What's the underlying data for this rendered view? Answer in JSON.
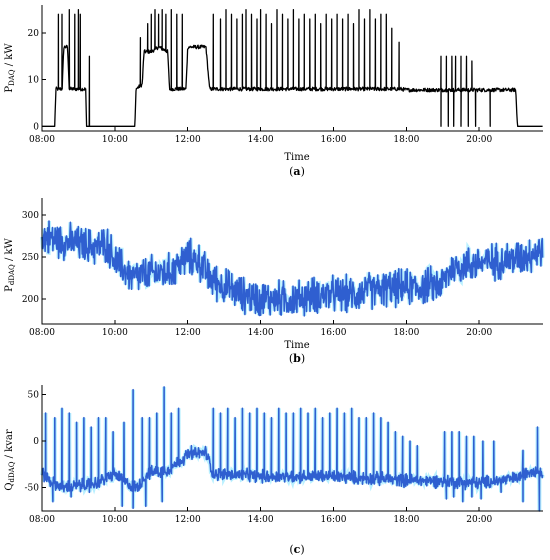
{
  "chart_data": [
    {
      "type": "line",
      "panel_label": "(a)",
      "panel_letter": "a",
      "xlabel": "Time",
      "ylabel_main": "P",
      "ylabel_sub": "DAQ",
      "ylabel_unit": " / kW",
      "xlim": [
        8.0,
        21.75
      ],
      "ylim": [
        -1,
        26
      ],
      "x_ticks": [
        "08:00",
        "10:00",
        "12:00",
        "14:00",
        "16:00",
        "18:00",
        "20:00"
      ],
      "x_tick_values": [
        8,
        10,
        12,
        14,
        16,
        18,
        20
      ],
      "y_ticks": [
        0,
        10,
        20
      ],
      "line_color": "#000000",
      "base": [
        [
          8.0,
          0
        ],
        [
          8.35,
          0
        ],
        [
          8.38,
          8
        ],
        [
          8.55,
          8
        ],
        [
          8.6,
          17
        ],
        [
          8.7,
          17
        ],
        [
          8.75,
          8
        ],
        [
          9.2,
          8
        ],
        [
          9.22,
          0
        ],
        [
          10.55,
          0
        ],
        [
          10.58,
          8
        ],
        [
          10.75,
          9
        ],
        [
          10.8,
          16
        ],
        [
          11.0,
          16
        ],
        [
          11.2,
          17
        ],
        [
          11.45,
          16
        ],
        [
          11.5,
          8
        ],
        [
          11.95,
          8
        ],
        [
          12.0,
          17
        ],
        [
          12.5,
          17
        ],
        [
          12.6,
          8
        ],
        [
          14.0,
          8
        ],
        [
          16.0,
          8
        ],
        [
          17.85,
          8
        ],
        [
          18.0,
          7.8
        ],
        [
          19.0,
          7.8
        ],
        [
          20.0,
          7.8
        ],
        [
          21.0,
          7.8
        ],
        [
          21.05,
          0
        ],
        [
          21.75,
          0
        ]
      ],
      "spikes": [
        [
          8.45,
          24
        ],
        [
          8.55,
          24
        ],
        [
          8.75,
          25
        ],
        [
          8.9,
          24
        ],
        [
          9.0,
          25
        ],
        [
          9.05,
          24
        ],
        [
          9.3,
          15
        ],
        [
          10.7,
          19
        ],
        [
          10.9,
          22
        ],
        [
          11.0,
          24
        ],
        [
          11.1,
          25
        ],
        [
          11.2,
          24
        ],
        [
          11.3,
          25
        ],
        [
          11.4,
          24
        ],
        [
          11.55,
          25
        ],
        [
          11.7,
          24
        ],
        [
          11.85,
          24
        ],
        [
          12.7,
          24
        ],
        [
          12.9,
          23
        ],
        [
          13.05,
          25
        ],
        [
          13.2,
          24
        ],
        [
          13.35,
          23
        ],
        [
          13.5,
          24
        ],
        [
          13.6,
          25
        ],
        [
          13.75,
          24
        ],
        [
          13.9,
          23
        ],
        [
          14.0,
          25
        ],
        [
          14.15,
          24
        ],
        [
          14.3,
          22
        ],
        [
          14.45,
          25
        ],
        [
          14.6,
          24
        ],
        [
          14.75,
          23
        ],
        [
          14.9,
          25
        ],
        [
          15.05,
          23
        ],
        [
          15.2,
          24
        ],
        [
          15.35,
          23
        ],
        [
          15.5,
          24
        ],
        [
          15.65,
          22
        ],
        [
          15.8,
          24
        ],
        [
          15.95,
          23
        ],
        [
          16.1,
          24
        ],
        [
          16.25,
          23
        ],
        [
          16.4,
          24
        ],
        [
          16.55,
          22
        ],
        [
          16.7,
          25
        ],
        [
          16.85,
          23
        ],
        [
          17.0,
          25
        ],
        [
          17.15,
          23
        ],
        [
          17.3,
          24
        ],
        [
          17.45,
          24
        ],
        [
          17.6,
          21
        ],
        [
          17.8,
          18
        ],
        [
          18.95,
          15
        ],
        [
          19.1,
          15
        ],
        [
          19.25,
          15
        ],
        [
          19.35,
          15
        ],
        [
          19.5,
          15
        ],
        [
          19.65,
          15
        ],
        [
          19.8,
          14
        ]
      ],
      "dips": [
        [
          18.95,
          0
        ],
        [
          19.15,
          0
        ],
        [
          19.3,
          0
        ],
        [
          19.5,
          0
        ],
        [
          19.7,
          0
        ],
        [
          19.9,
          0
        ],
        [
          20.3,
          0
        ]
      ]
    },
    {
      "type": "line",
      "panel_label": "(b)",
      "panel_letter": "b",
      "xlabel": "Time",
      "ylabel_main": "P",
      "ylabel_sub": "dDAQ",
      "ylabel_unit": " / kW",
      "xlim": [
        8.0,
        21.75
      ],
      "ylim": [
        170,
        320
      ],
      "x_ticks": [
        "08:00",
        "10:00",
        "12:00",
        "14:00",
        "16:00",
        "18:00",
        "20:00"
      ],
      "x_tick_values": [
        8,
        10,
        12,
        14,
        16,
        18,
        20
      ],
      "y_ticks": [
        200,
        250,
        300
      ],
      "line_color": "#2f5fd0",
      "glow_color": "#7fe3ff",
      "trend": [
        [
          8.0,
          275
        ],
        [
          8.5,
          270
        ],
        [
          9.0,
          265
        ],
        [
          9.5,
          262
        ],
        [
          9.8,
          265
        ],
        [
          10.0,
          245
        ],
        [
          10.5,
          225
        ],
        [
          11.0,
          230
        ],
        [
          11.5,
          232
        ],
        [
          12.0,
          250
        ],
        [
          12.3,
          245
        ],
        [
          12.6,
          225
        ],
        [
          13.0,
          215
        ],
        [
          13.5,
          205
        ],
        [
          14.0,
          200
        ],
        [
          14.5,
          200
        ],
        [
          15.0,
          200
        ],
        [
          15.5,
          205
        ],
        [
          16.0,
          205
        ],
        [
          16.5,
          205
        ],
        [
          17.0,
          210
        ],
        [
          17.5,
          212
        ],
        [
          18.0,
          213
        ],
        [
          18.5,
          215
        ],
        [
          19.0,
          218
        ],
        [
          19.2,
          235
        ],
        [
          19.5,
          240
        ],
        [
          20.0,
          243
        ],
        [
          20.5,
          245
        ],
        [
          21.0,
          248
        ],
        [
          21.5,
          255
        ],
        [
          21.75,
          258
        ]
      ],
      "noise_amplitude": 22
    },
    {
      "type": "line",
      "panel_label": "(c)",
      "panel_letter": "c",
      "xlabel": "",
      "ylabel_main": "Q",
      "ylabel_sub": "dDAQ",
      "ylabel_unit": " / kvar",
      "xlim": [
        8.0,
        21.75
      ],
      "ylim": [
        -75,
        60
      ],
      "x_ticks": [
        "08:00",
        "10:00",
        "12:00",
        "14:00",
        "16:00",
        "18:00",
        "20:00"
      ],
      "x_tick_values": [
        8,
        10,
        12,
        14,
        16,
        18,
        20
      ],
      "y_ticks": [
        -50,
        0,
        50
      ],
      "line_color": "#2f5fd0",
      "glow_color": "#7fe3ff",
      "trend": [
        [
          8.0,
          -35
        ],
        [
          8.3,
          -45
        ],
        [
          8.6,
          -50
        ],
        [
          9.0,
          -48
        ],
        [
          9.5,
          -45
        ],
        [
          10.0,
          -35
        ],
        [
          10.3,
          -45
        ],
        [
          10.6,
          -50
        ],
        [
          10.9,
          -35
        ],
        [
          11.5,
          -30
        ],
        [
          12.0,
          -15
        ],
        [
          12.5,
          -12
        ],
        [
          12.7,
          -35
        ],
        [
          14.0,
          -38
        ],
        [
          16.0,
          -38
        ],
        [
          17.0,
          -40
        ],
        [
          18.0,
          -42
        ],
        [
          19.0,
          -43
        ],
        [
          20.0,
          -45
        ],
        [
          21.0,
          -40
        ],
        [
          21.5,
          -30
        ],
        [
          21.75,
          -35
        ]
      ],
      "noise_amplitude": 7,
      "spikes": [
        [
          8.1,
          30
        ],
        [
          8.35,
          25
        ],
        [
          8.55,
          35
        ],
        [
          8.75,
          30
        ],
        [
          8.95,
          20
        ],
        [
          9.15,
          25
        ],
        [
          9.35,
          15
        ],
        [
          9.55,
          25
        ],
        [
          9.75,
          25
        ],
        [
          9.95,
          10
        ],
        [
          10.25,
          20
        ],
        [
          10.5,
          55
        ],
        [
          10.75,
          25
        ],
        [
          10.95,
          25
        ],
        [
          11.15,
          30
        ],
        [
          11.35,
          58
        ],
        [
          11.55,
          30
        ],
        [
          11.75,
          35
        ],
        [
          12.1,
          -5
        ],
        [
          12.7,
          35
        ],
        [
          12.9,
          30
        ],
        [
          13.1,
          35
        ],
        [
          13.3,
          25
        ],
        [
          13.5,
          35
        ],
        [
          13.7,
          30
        ],
        [
          13.9,
          35
        ],
        [
          14.1,
          30
        ],
        [
          14.3,
          25
        ],
        [
          14.5,
          35
        ],
        [
          14.7,
          30
        ],
        [
          14.9,
          30
        ],
        [
          15.1,
          35
        ],
        [
          15.3,
          30
        ],
        [
          15.5,
          35
        ],
        [
          15.7,
          25
        ],
        [
          15.9,
          30
        ],
        [
          16.1,
          35
        ],
        [
          16.3,
          30
        ],
        [
          16.5,
          35
        ],
        [
          16.7,
          25
        ],
        [
          16.9,
          25
        ],
        [
          17.1,
          30
        ],
        [
          17.3,
          25
        ],
        [
          17.5,
          20
        ],
        [
          17.7,
          10
        ],
        [
          17.9,
          5
        ],
        [
          18.1,
          0
        ],
        [
          18.3,
          -5
        ],
        [
          19.05,
          10
        ],
        [
          19.25,
          10
        ],
        [
          19.45,
          10
        ],
        [
          19.65,
          5
        ],
        [
          19.85,
          5
        ],
        [
          20.1,
          0
        ],
        [
          20.4,
          0
        ],
        [
          21.2,
          -10
        ],
        [
          21.6,
          15
        ]
      ],
      "dips": [
        [
          8.3,
          -65
        ],
        [
          8.8,
          -60
        ],
        [
          9.3,
          -55
        ],
        [
          10.2,
          -70
        ],
        [
          10.5,
          -72
        ],
        [
          10.85,
          -70
        ],
        [
          11.3,
          -65
        ],
        [
          19.1,
          -62
        ],
        [
          19.3,
          -60
        ],
        [
          19.55,
          -65
        ],
        [
          19.8,
          -60
        ],
        [
          20.05,
          -62
        ],
        [
          20.6,
          -55
        ],
        [
          21.2,
          -65
        ],
        [
          21.65,
          -75
        ]
      ]
    }
  ]
}
